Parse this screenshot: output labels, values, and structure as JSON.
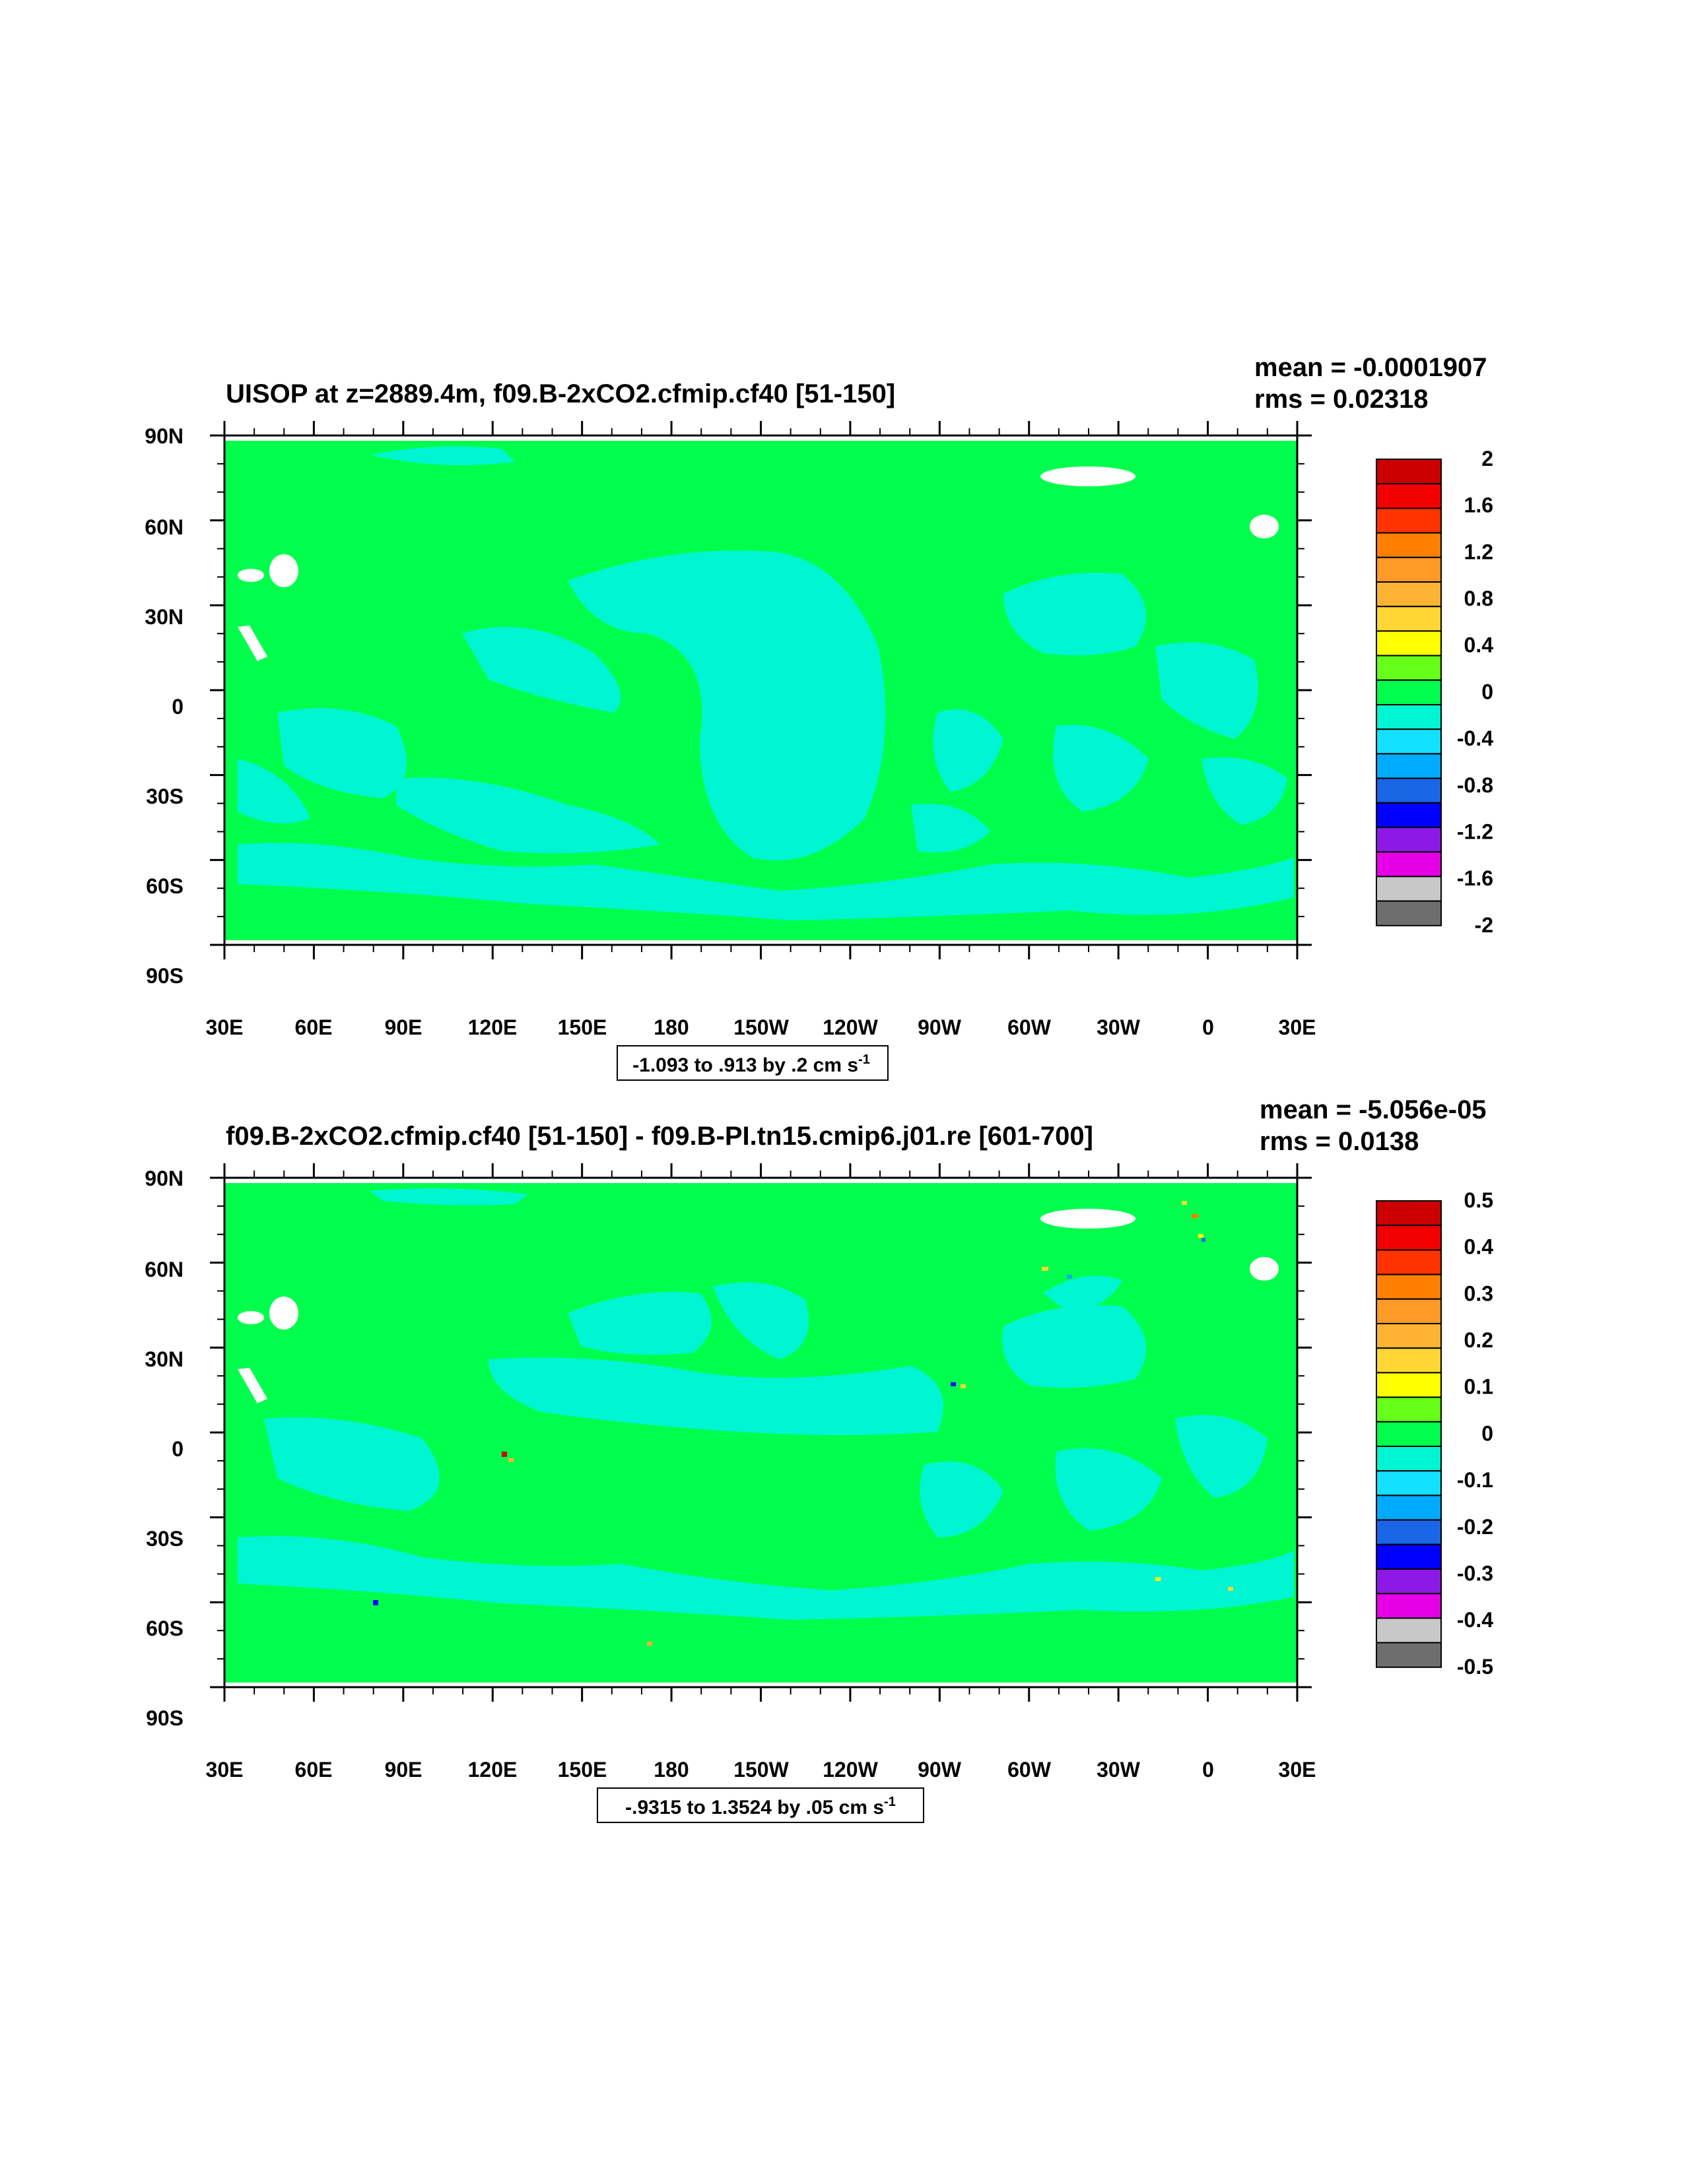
{
  "panels": [
    {
      "title": "UISOP at z=2889.4m, f09.B-2xCO2.cfmip.cf40 [51-150]",
      "stats": {
        "mean": "mean = -0.0001907",
        "rms": "rms = 0.02318"
      },
      "contour_info": {
        "main": "-1.093 to .913 by .2 cm s",
        "sup": "-1"
      }
    },
    {
      "title": "f09.B-2xCO2.cfmip.cf40 [51-150] - f09.B-PI.tn15.cmip6.j01.re [601-700]",
      "stats": {
        "mean": "mean = -5.056e-05",
        "rms": "rms = 0.0138"
      },
      "contour_info": {
        "main": "-.9315 to 1.3524 by .05 cm s",
        "sup": "-1"
      }
    }
  ],
  "colors": {
    "land_missing": "#ffffff",
    "axis": "#000000",
    "map_background": "#00ff4c",
    "ocean_negative": "#00f5d2"
  },
  "chart_data": [
    {
      "type": "heatmap",
      "title": "UISOP at z=2889.4m, f09.B-2xCO2.cfmip.cf40 [51-150]",
      "xlabel": "",
      "ylabel": "",
      "x_tick_labels": [
        "30E",
        "60E",
        "90E",
        "120E",
        "150E",
        "180",
        "150W",
        "120W",
        "90W",
        "60W",
        "30W",
        "0",
        "30E"
      ],
      "y_tick_labels": [
        "90N",
        "60N",
        "30N",
        "0",
        "30S",
        "60S",
        "90S"
      ],
      "x_range_lon": [
        30,
        390
      ],
      "y_range_lat": [
        -90,
        90
      ],
      "data_lat_extent": [
        -79,
        89
      ],
      "dominant_value_range": [
        -0.4,
        0.0
      ],
      "colorbar": {
        "labels": [
          "2",
          "1.6",
          "1.2",
          "0.8",
          "0.4",
          "0",
          "-0.4",
          "-0.8",
          "-1.2",
          "-1.6",
          "-2"
        ],
        "levels": [
          2,
          1.6,
          1.2,
          0.8,
          0.4,
          0,
          -0.4,
          -0.8,
          -1.2,
          -1.6,
          -2
        ],
        "colors": [
          "#cc0000",
          "#f20000",
          "#ff3300",
          "#ff8000",
          "#ff9a26",
          "#ffb333",
          "#ffd633",
          "#ffff00",
          "#66ff1a",
          "#00ff4c",
          "#00f5d2",
          "#14e0ff",
          "#00aaff",
          "#1a66e6",
          "#0000ff",
          "#8c19e6",
          "#e600e6",
          "#c8c8c8",
          "#6e6e6e"
        ]
      }
    },
    {
      "type": "heatmap",
      "title": "f09.B-2xCO2.cfmip.cf40 [51-150] - f09.B-PI.tn15.cmip6.j01.re [601-700]",
      "xlabel": "",
      "ylabel": "",
      "x_tick_labels": [
        "30E",
        "60E",
        "90E",
        "120E",
        "150E",
        "180",
        "150W",
        "120W",
        "90W",
        "60W",
        "30W",
        "0",
        "30E"
      ],
      "y_tick_labels": [
        "90N",
        "60N",
        "30N",
        "0",
        "30S",
        "60S",
        "90S"
      ],
      "x_range_lon": [
        30,
        390
      ],
      "y_range_lat": [
        -90,
        90
      ],
      "data_lat_extent": [
        -79,
        89
      ],
      "dominant_value_range": [
        -0.1,
        0.0
      ],
      "colorbar": {
        "labels": [
          "0.5",
          "0.4",
          "0.3",
          "0.2",
          "0.1",
          "0",
          "-0.1",
          "-0.2",
          "-0.3",
          "-0.4",
          "-0.5"
        ],
        "levels": [
          0.5,
          0.4,
          0.3,
          0.2,
          0.1,
          0,
          -0.1,
          -0.2,
          -0.3,
          -0.4,
          -0.5
        ],
        "colors": [
          "#cc0000",
          "#f20000",
          "#ff3300",
          "#ff8000",
          "#ff9a26",
          "#ffb333",
          "#ffd633",
          "#ffff00",
          "#66ff1a",
          "#00ff4c",
          "#00f5d2",
          "#14e0ff",
          "#00aaff",
          "#1a66e6",
          "#0000ff",
          "#8c19e6",
          "#e600e6",
          "#c8c8c8",
          "#6e6e6e"
        ]
      }
    }
  ]
}
